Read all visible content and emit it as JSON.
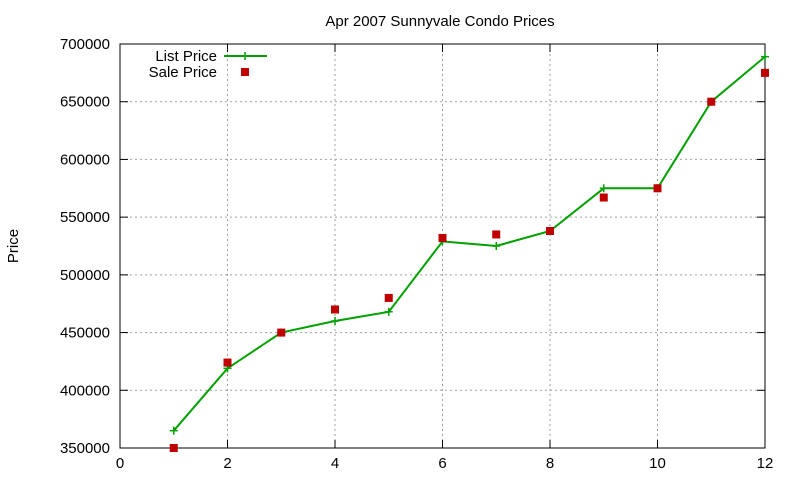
{
  "chart_data": {
    "type": "line",
    "title": "Apr 2007 Sunnyvale Condo Prices",
    "xlabel": "",
    "ylabel": "Price",
    "xlim": [
      0,
      12
    ],
    "ylim": [
      350000,
      700000
    ],
    "xticks": [
      0,
      2,
      4,
      6,
      8,
      10,
      12
    ],
    "yticks": [
      350000,
      400000,
      450000,
      500000,
      550000,
      600000,
      650000,
      700000
    ],
    "grid": true,
    "legend_position": "top-left",
    "series": [
      {
        "name": "List Price",
        "style": "line-points",
        "marker": "plus",
        "color": "#00a000",
        "x": [
          1,
          2,
          3,
          4,
          5,
          6,
          7,
          8,
          9,
          10,
          11,
          12
        ],
        "y": [
          365000,
          419000,
          450000,
          460000,
          468000,
          529000,
          525000,
          538000,
          575000,
          575000,
          650000,
          689000
        ]
      },
      {
        "name": "Sale Price",
        "style": "points",
        "marker": "square",
        "color": "#c00000",
        "x": [
          1,
          2,
          3,
          4,
          5,
          6,
          7,
          8,
          9,
          10,
          11,
          12
        ],
        "y": [
          350000,
          424000,
          450000,
          470000,
          480000,
          532000,
          535000,
          538000,
          567000,
          575000,
          650000,
          675000
        ]
      }
    ]
  }
}
